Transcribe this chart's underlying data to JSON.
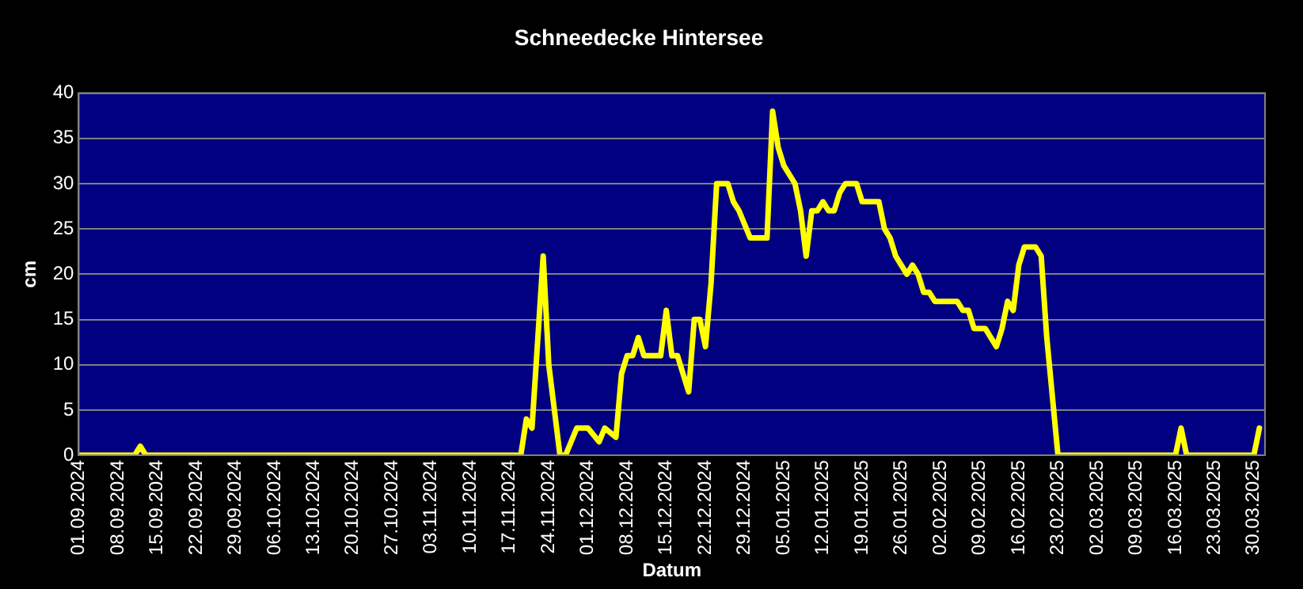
{
  "chart_data": {
    "type": "line",
    "title": "Schneedecke Hintersee",
    "xlabel": "Datum",
    "ylabel": "cm",
    "xlim": [
      "2024-09-01",
      "2025-04-01"
    ],
    "xticks": [
      {
        "value": "2024-09-01",
        "label": "01.09.2024"
      },
      {
        "value": "2024-09-08",
        "label": "08.09.2024"
      },
      {
        "value": "2024-09-15",
        "label": "15.09.2024"
      },
      {
        "value": "2024-09-22",
        "label": "22.09.2024"
      },
      {
        "value": "2024-09-29",
        "label": "29.09.2024"
      },
      {
        "value": "2024-10-06",
        "label": "06.10.2024"
      },
      {
        "value": "2024-10-13",
        "label": "13.10.2024"
      },
      {
        "value": "2024-10-20",
        "label": "20.10.2024"
      },
      {
        "value": "2024-10-27",
        "label": "27.10.2024"
      },
      {
        "value": "2024-11-03",
        "label": "03.11.2024"
      },
      {
        "value": "2024-11-10",
        "label": "10.11.2024"
      },
      {
        "value": "2024-11-17",
        "label": "17.11.2024"
      },
      {
        "value": "2024-11-24",
        "label": "24.11.2024"
      },
      {
        "value": "2024-12-01",
        "label": "01.12.2024"
      },
      {
        "value": "2024-12-08",
        "label": "08.12.2024"
      },
      {
        "value": "2024-12-15",
        "label": "15.12.2024"
      },
      {
        "value": "2024-12-22",
        "label": "22.12.2024"
      },
      {
        "value": "2024-12-29",
        "label": "29.12.2024"
      },
      {
        "value": "2025-01-05",
        "label": "05.01.2025"
      },
      {
        "value": "2025-01-12",
        "label": "12.01.2025"
      },
      {
        "value": "2025-01-19",
        "label": "19.01.2025"
      },
      {
        "value": "2025-01-26",
        "label": "26.01.2025"
      },
      {
        "value": "2025-02-02",
        "label": "02.02.2025"
      },
      {
        "value": "2025-02-09",
        "label": "09.02.2025"
      },
      {
        "value": "2025-02-16",
        "label": "16.02.2025"
      },
      {
        "value": "2025-02-23",
        "label": "23.02.2025"
      },
      {
        "value": "2025-03-02",
        "label": "02.03.2025"
      },
      {
        "value": "2025-03-09",
        "label": "09.03.2025"
      },
      {
        "value": "2025-03-16",
        "label": "16.03.2025"
      },
      {
        "value": "2025-03-23",
        "label": "23.03.2025"
      },
      {
        "value": "2025-03-30",
        "label": "30.03.2025"
      }
    ],
    "ylim": [
      0,
      40
    ],
    "yticks": [
      0,
      5,
      10,
      15,
      20,
      25,
      30,
      35,
      40
    ],
    "grid": "y",
    "legend": false,
    "marker": "none",
    "line_style": "solid",
    "series": [
      {
        "color": "#ffff00",
        "x": [
          "2024-09-01",
          "2024-09-11",
          "2024-09-12",
          "2024-09-13",
          "2024-11-19",
          "2024-11-20",
          "2024-11-21",
          "2024-11-23",
          "2024-11-24",
          "2024-11-26",
          "2024-11-27",
          "2024-11-29",
          "2024-12-01",
          "2024-12-03",
          "2024-12-04",
          "2024-12-06",
          "2024-12-07",
          "2024-12-08",
          "2024-12-09",
          "2024-12-10",
          "2024-12-11",
          "2024-12-14",
          "2024-12-15",
          "2024-12-16",
          "2024-12-17",
          "2024-12-19",
          "2024-12-20",
          "2024-12-21",
          "2024-12-22",
          "2024-12-23",
          "2024-12-24",
          "2024-12-26",
          "2024-12-27",
          "2024-12-28",
          "2024-12-30",
          "2025-01-02",
          "2025-01-03",
          "2025-01-04",
          "2025-01-05",
          "2025-01-07",
          "2025-01-08",
          "2025-01-09",
          "2025-01-10",
          "2025-01-11",
          "2025-01-12",
          "2025-01-13",
          "2025-01-14",
          "2025-01-15",
          "2025-01-16",
          "2025-01-18",
          "2025-01-19",
          "2025-01-22",
          "2025-01-23",
          "2025-01-24",
          "2025-01-25",
          "2025-01-27",
          "2025-01-28",
          "2025-01-29",
          "2025-01-30",
          "2025-01-31",
          "2025-02-01",
          "2025-02-05",
          "2025-02-06",
          "2025-02-07",
          "2025-02-08",
          "2025-02-10",
          "2025-02-12",
          "2025-02-13",
          "2025-02-14",
          "2025-02-15",
          "2025-02-16",
          "2025-02-17",
          "2025-02-19",
          "2025-02-20",
          "2025-02-21",
          "2025-02-23",
          "2025-03-16",
          "2025-03-17",
          "2025-03-18",
          "2025-03-30",
          "2025-03-31"
        ],
        "values": [
          0,
          0,
          1,
          0,
          0,
          4,
          3,
          22,
          10,
          0,
          0,
          3,
          3,
          1.5,
          3,
          2,
          9,
          11,
          11,
          13,
          11,
          11,
          16,
          11,
          11,
          7,
          15,
          15,
          12,
          19,
          30,
          30,
          28,
          27,
          24,
          24,
          38,
          34,
          32,
          30,
          27,
          22,
          27,
          27,
          28,
          27,
          27,
          29,
          30,
          30,
          28,
          28,
          25,
          24,
          22,
          20,
          21,
          20,
          18,
          18,
          17,
          17,
          16,
          16,
          14,
          14,
          12,
          14,
          17,
          16,
          21,
          23,
          23,
          22,
          13,
          0,
          0,
          3,
          0,
          0,
          3
        ]
      }
    ]
  }
}
